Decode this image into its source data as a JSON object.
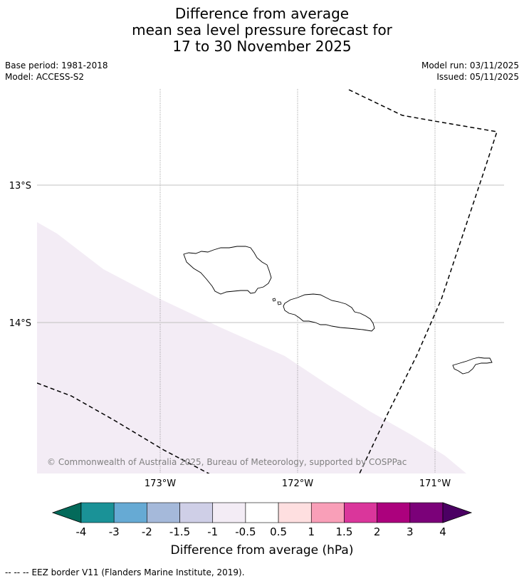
{
  "title": {
    "line1": "Difference from average",
    "line2": "mean sea level pressure forecast for",
    "line3": "17 to 30 November 2025"
  },
  "meta": {
    "base_period": "Base period: 1981-2018",
    "model": "Model: ACCESS-S2",
    "model_run": "Model run: 03/11/2025",
    "issued": "Issued: 05/11/2025"
  },
  "map": {
    "lat_labels": [
      "13°S",
      "14°S"
    ],
    "lon_labels": [
      "173°W",
      "172°W",
      "171°W"
    ],
    "copyright": "© Commonwealth of Australia 2025, Bureau of Meteorology, supported by COSPPac",
    "shading_bin": "-1 to -0.5",
    "islands": [
      "Savai'i",
      "Upolu",
      "Tutuila"
    ],
    "colors": {
      "shading": "#f3ecf5",
      "grid": "#c0c0c0",
      "coast": "#000000",
      "eez": "#000000"
    }
  },
  "colorbar": {
    "title": "Difference from average (hPa)",
    "ticks": [
      "-4",
      "-3",
      "-2",
      "-1.5",
      "-1",
      "-0.5",
      "0.5",
      "1",
      "1.5",
      "2",
      "3",
      "4"
    ],
    "colors": [
      "#036a5a",
      "#1a9297",
      "#66aad4",
      "#a5b9da",
      "#cfcfe7",
      "#f3ecf5",
      "#ffffff",
      "#fedfe0",
      "#f99fb8",
      "#da369b",
      "#ac017d",
      "#7b0179",
      "#4b0063"
    ]
  },
  "footer": {
    "legend_symbol": "--  --  --",
    "legend_text": "EEZ border V11 (Flanders Marine Institute, 2019)."
  }
}
